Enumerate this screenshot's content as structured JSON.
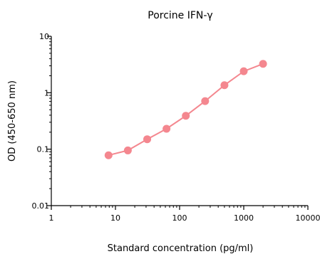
{
  "chart_data": {
    "type": "line",
    "title": "Porcine IFN-γ",
    "xlabel": "Standard concentration (pg/ml)",
    "ylabel": "OD (450-650 nm)",
    "x_scale": "log",
    "y_scale": "log",
    "xlim": [
      1,
      10000
    ],
    "ylim": [
      0.01,
      10
    ],
    "x_ticks": [
      {
        "value": 1,
        "label": "1"
      },
      {
        "value": 10,
        "label": "10"
      },
      {
        "value": 100,
        "label": "100"
      },
      {
        "value": 1000,
        "label": "1000"
      },
      {
        "value": 10000,
        "label": "10000"
      }
    ],
    "y_ticks": [
      {
        "value": 0.01,
        "label": "0.01"
      },
      {
        "value": 0.1,
        "label": "0.1"
      },
      {
        "value": 1,
        "label": "1"
      },
      {
        "value": 10,
        "label": "10"
      }
    ],
    "grid": false,
    "legend": "none",
    "series": [
      {
        "color": "#f4878f",
        "x": [
          7.8,
          15.6,
          31.25,
          62.5,
          125,
          250,
          500,
          1000,
          2000
        ],
        "y": [
          0.078,
          0.095,
          0.15,
          0.23,
          0.39,
          0.71,
          1.36,
          2.4,
          3.25
        ]
      }
    ]
  }
}
